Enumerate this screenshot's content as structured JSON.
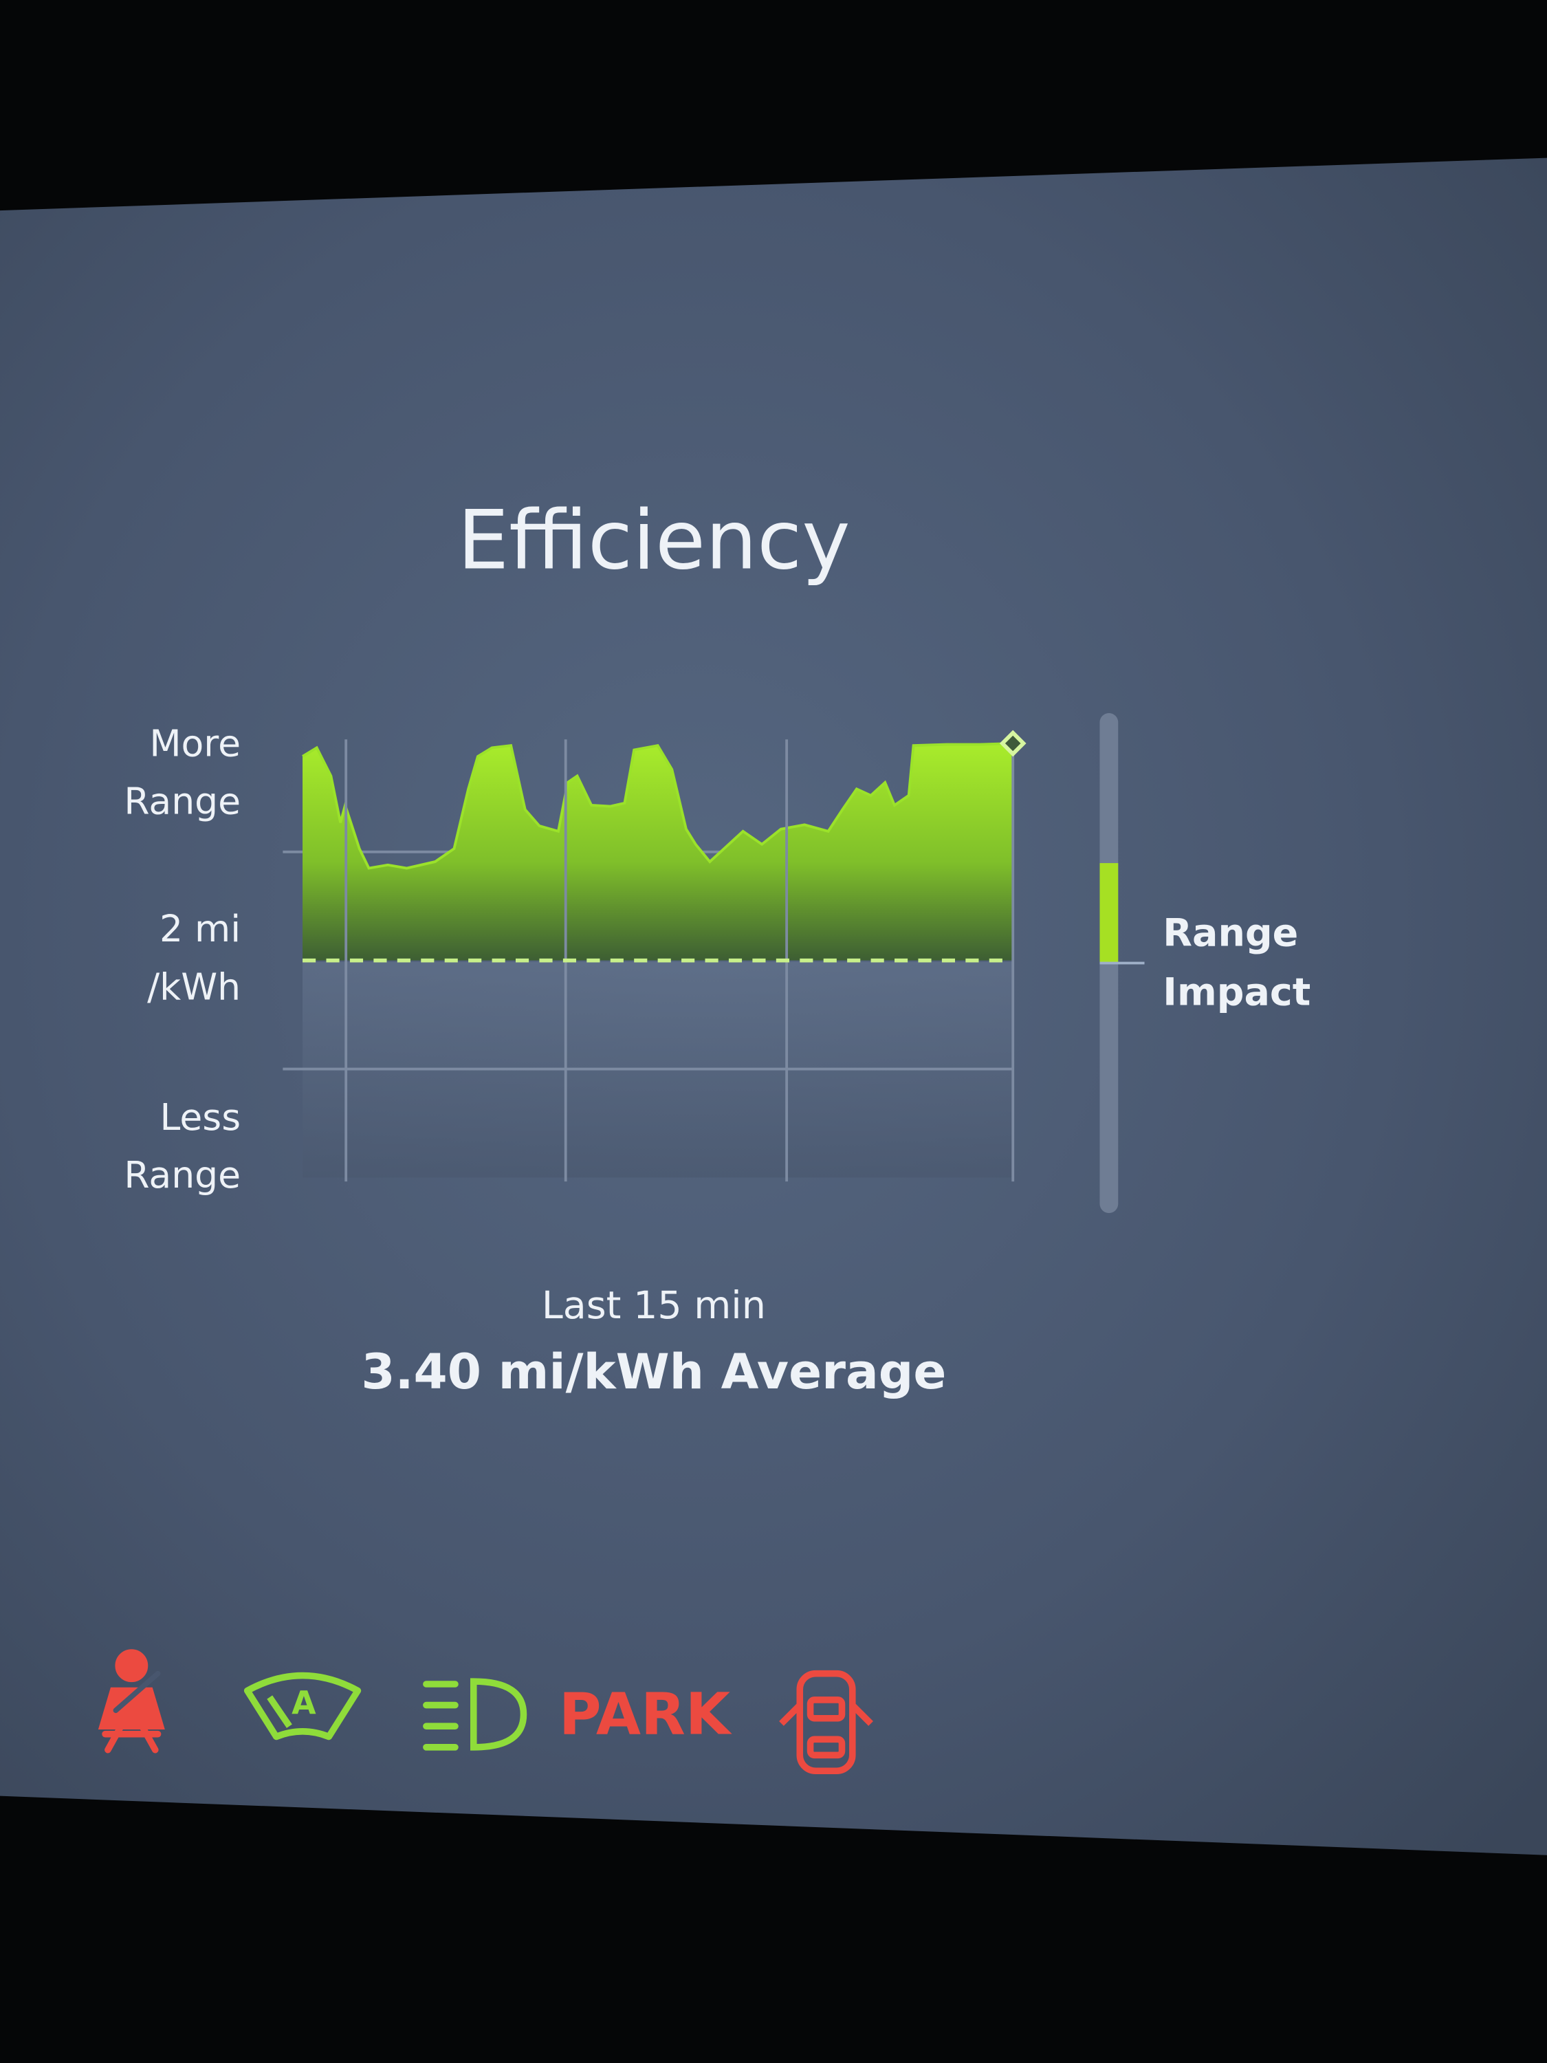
{
  "chart_data": {
    "type": "area",
    "title": "Efficiency",
    "y_top_label": [
      "More",
      "Range"
    ],
    "y_bottom_label": [
      "Less",
      "Range"
    ],
    "reference": {
      "value": 2,
      "label": [
        "2 mi",
        "/kWh"
      ]
    },
    "x": [
      0.0,
      0.3,
      0.6,
      0.8,
      0.9,
      1.2,
      1.4,
      1.8,
      2.2,
      2.8,
      3.2,
      3.5,
      3.7,
      4.0,
      4.4,
      4.7,
      5.0,
      5.4,
      5.6,
      5.8,
      6.1,
      6.5,
      6.8,
      7.0,
      7.5,
      7.8,
      8.1,
      8.3,
      8.6,
      8.9,
      9.3,
      9.7,
      10.1,
      10.6,
      11.1,
      11.4,
      11.7,
      12.0,
      12.3,
      12.5,
      12.8,
      12.9,
      13.6,
      14.3,
      15.0
    ],
    "values": [
      3.88,
      3.96,
      3.7,
      3.27,
      3.43,
      3.03,
      2.85,
      2.88,
      2.85,
      2.91,
      3.03,
      3.58,
      3.88,
      3.96,
      3.98,
      3.39,
      3.24,
      3.19,
      3.64,
      3.7,
      3.43,
      3.42,
      3.45,
      3.94,
      3.98,
      3.76,
      3.21,
      3.07,
      2.91,
      3.03,
      3.19,
      3.07,
      3.21,
      3.25,
      3.19,
      3.39,
      3.58,
      3.52,
      3.64,
      3.43,
      3.52,
      3.98,
      3.99,
      3.99,
      4.0
    ],
    "color": "#9be22a",
    "xlim": [
      0,
      15
    ],
    "ylim": [
      0,
      4
    ],
    "grid_y": [
      1,
      3
    ],
    "range_impact": {
      "label": [
        "Range",
        "Impact"
      ],
      "value": 0.4,
      "lim": [
        -1,
        1
      ],
      "color": "#a6e023"
    },
    "period": "Last 15 min",
    "average": "3.40 mi/kWh Average"
  },
  "status": {
    "wiper_label": "A",
    "gear": "PARK"
  }
}
